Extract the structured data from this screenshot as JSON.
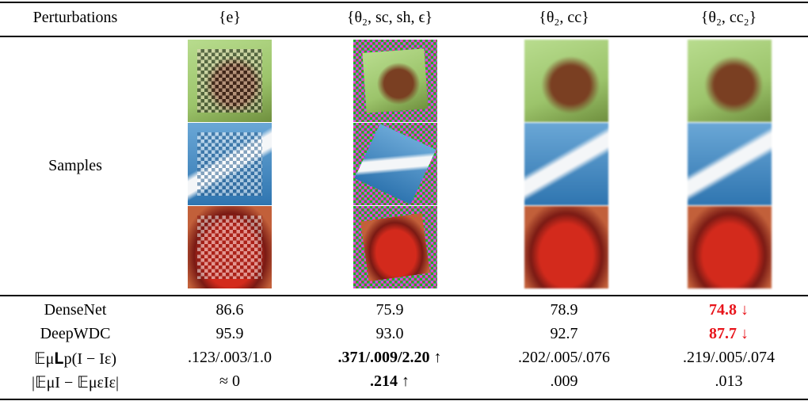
{
  "table": {
    "header": [
      "Perturbations",
      "{e}",
      "{θ₂, sc, sh, ϵ}",
      "{θ₂, cc}",
      "{θ₂, cc₂}"
    ],
    "samples_label": "Samples",
    "rows": [
      [
        "DenseNet",
        "86.6",
        "75.9",
        "78.9",
        {
          "text": "74.8 ↓",
          "bold": true,
          "color": "#e8141b"
        }
      ],
      [
        "DeepWDC",
        "95.9",
        "93.0",
        "92.7",
        {
          "text": "87.7 ↓",
          "bold": true,
          "color": "#e8141b"
        }
      ],
      [
        "𝔼μ𝐋p(I − Iε)",
        ".123/.003/1.0",
        {
          "text": ".371/.009/2.20 ↑",
          "bold": true
        },
        ".202/.005/.076",
        ".219/.005/.074"
      ],
      [
        "|𝔼μI − 𝔼μεIε|",
        "≈ 0",
        {
          "text": ".214 ↑",
          "bold": true
        },
        ".009",
        ".013"
      ]
    ]
  }
}
